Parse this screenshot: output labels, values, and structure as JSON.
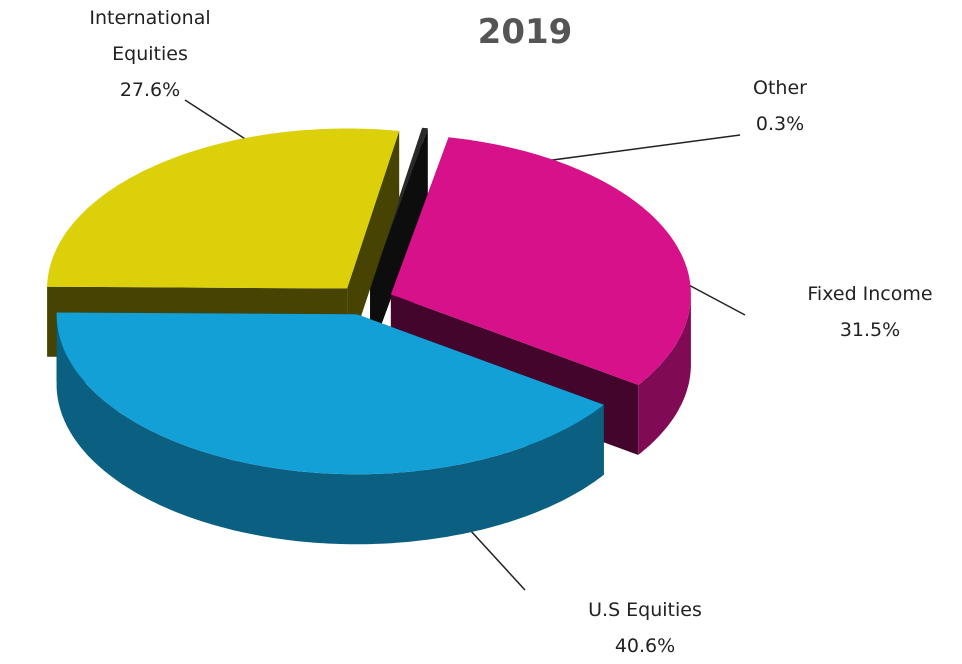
{
  "chart_data": {
    "type": "pie",
    "title": "2019",
    "categories": [
      "Other",
      "Fixed Income",
      "U.S Equities",
      "International Equities"
    ],
    "values": [
      0.3,
      31.5,
      40.6,
      27.6
    ],
    "value_labels": [
      "0.3%",
      "31.5%",
      "40.6%",
      "27.6%"
    ],
    "colors": [
      "#2a2a2a",
      "#d6118a",
      "#12a0d7",
      "#dcd00a"
    ]
  }
}
